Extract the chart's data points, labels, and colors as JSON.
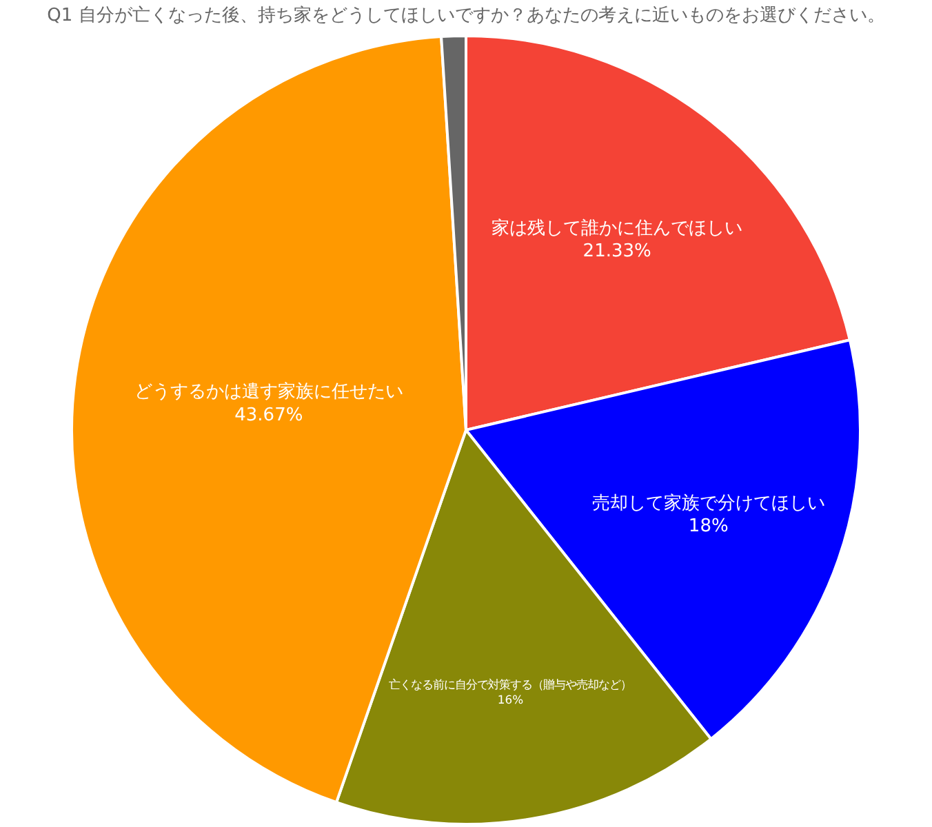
{
  "chart_data": {
    "type": "pie",
    "title": "Q1 自分が亡くなった後、持ち家をどうしてほしいですか？あなたの考えに近いものをお選びください。",
    "categories": [
      "家は残して誰かに住んでほしい",
      "売却して家族で分けてほしい",
      "亡くなる前に自分で対策する（贈与や売却など）",
      "どうするかは遺す家族に任せたい",
      null
    ],
    "values": [
      21.33,
      18,
      16,
      43.67,
      1
    ],
    "colors": [
      "#f44336",
      "#0000ff",
      "#888808",
      "#ff9900",
      "#666666"
    ],
    "value_labels": [
      "21.33%",
      "18%",
      "16%",
      "43.67%",
      null
    ]
  }
}
